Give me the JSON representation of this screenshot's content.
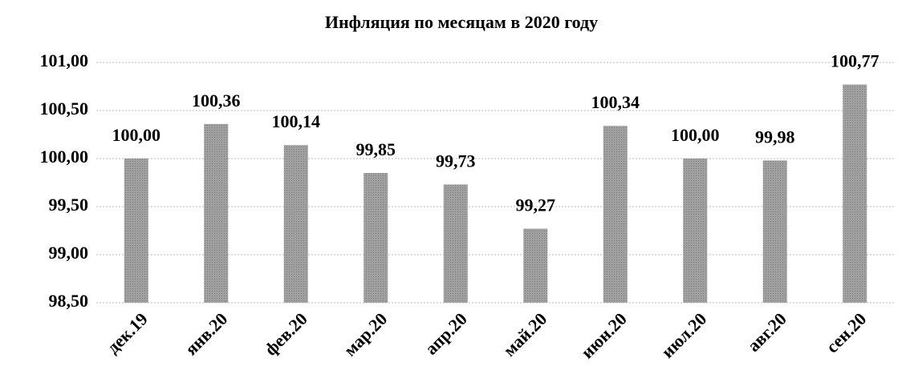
{
  "chart_data": {
    "type": "bar",
    "title": "Инфляция по месяцам в 2020 году",
    "categories": [
      "дек.19",
      "янв.20",
      "фев.20",
      "мар.20",
      "апр.20",
      "май.20",
      "июн.20",
      "июл.20",
      "авг.20",
      "сен.20"
    ],
    "values": [
      100.0,
      100.36,
      100.14,
      99.85,
      99.73,
      99.27,
      100.34,
      100.0,
      99.98,
      100.77
    ],
    "value_labels": [
      "100,00",
      "100,36",
      "100,14",
      "99,85",
      "99,73",
      "99,27",
      "100,34",
      "100,00",
      "99,98",
      "100,77"
    ],
    "color": "#9a9a9a",
    "ylim": [
      98.5,
      101
    ],
    "yticks": [
      {
        "value": 98.5,
        "label": "98,50"
      },
      {
        "value": 99,
        "label": "99,00"
      },
      {
        "value": 99.5,
        "label": "99,50"
      },
      {
        "value": 100,
        "label": "100,00"
      },
      {
        "value": 100.5,
        "label": "100,50"
      },
      {
        "value": 101,
        "label": "101,00"
      }
    ],
    "grid": true
  }
}
